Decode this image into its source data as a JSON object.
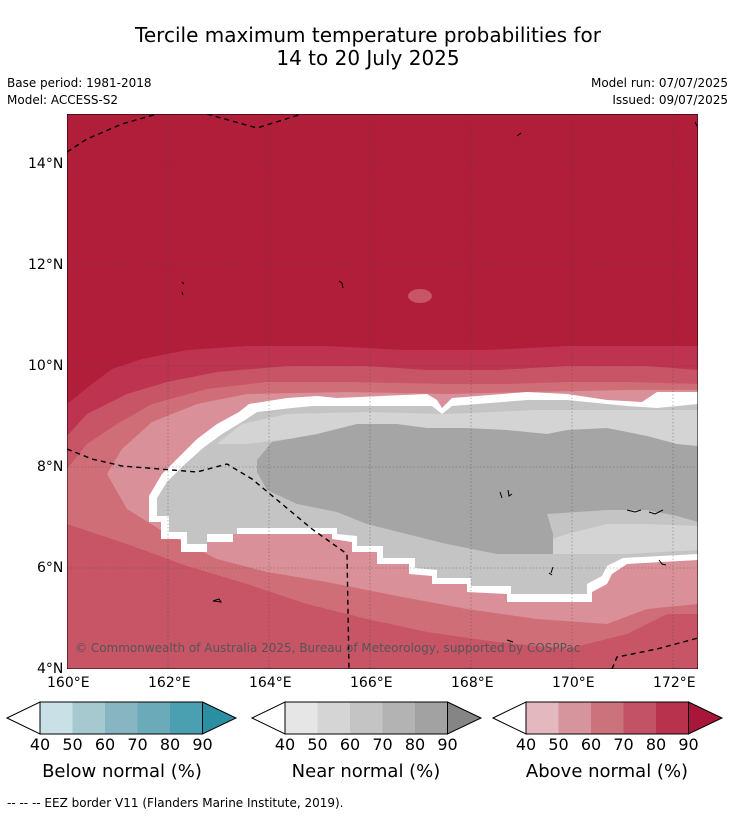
{
  "title": {
    "line1": "Tercile maximum temperature probabilities for",
    "line2": "14 to 20 July 2025"
  },
  "meta": {
    "base_period": "Base period: 1981-2018",
    "model": "Model: ACCESS-S2",
    "model_run": "Model run: 07/07/2025",
    "issued": "Issued: 09/07/2025"
  },
  "map": {
    "lat_ticks": [
      "14°N",
      "12°N",
      "10°N",
      "8°N",
      "6°N",
      "4°N"
    ],
    "lon_ticks": [
      "160°E",
      "162°E",
      "164°E",
      "166°E",
      "168°E",
      "170°E",
      "172°E"
    ],
    "copyright": "© Commonwealth of Australia 2025, Bureau of Meteorology, supported by COSPPac",
    "colors": {
      "above_90": "#b01e3a",
      "above_80": "#bd3350",
      "above_70": "#c85565",
      "above_60": "#d06e78",
      "above_50": "#d99098",
      "above_40": "#e2b8be",
      "near_50": "#e3e3e3",
      "near_60": "#d4d4d4",
      "near_70": "#c4c4c4",
      "near_80": "#a5a5a5"
    }
  },
  "colorbars": [
    {
      "label": "Below normal (%)",
      "ticks": [
        "40",
        "50",
        "60",
        "70",
        "80",
        "90"
      ],
      "colors": [
        "#c8e0e6",
        "#a6c8cf",
        "#87b6c2",
        "#6aaab9",
        "#4a9fb0",
        "#2b8fa4"
      ]
    },
    {
      "label": "Near normal (%)",
      "ticks": [
        "40",
        "50",
        "60",
        "70",
        "80",
        "90"
      ],
      "colors": [
        "#e6e6e6",
        "#d5d5d5",
        "#c4c4c4",
        "#b3b3b3",
        "#a2a2a2",
        "#858585"
      ]
    },
    {
      "label": "Above normal (%)",
      "ticks": [
        "40",
        "50",
        "60",
        "70",
        "80",
        "90"
      ],
      "colors": [
        "#e3b8be",
        "#d6959c",
        "#cc727c",
        "#c45266",
        "#b8324d",
        "#a8163a"
      ]
    }
  ],
  "footer": "--  --  -- EEZ border V11 (Flanders Marine Institute, 2019)."
}
